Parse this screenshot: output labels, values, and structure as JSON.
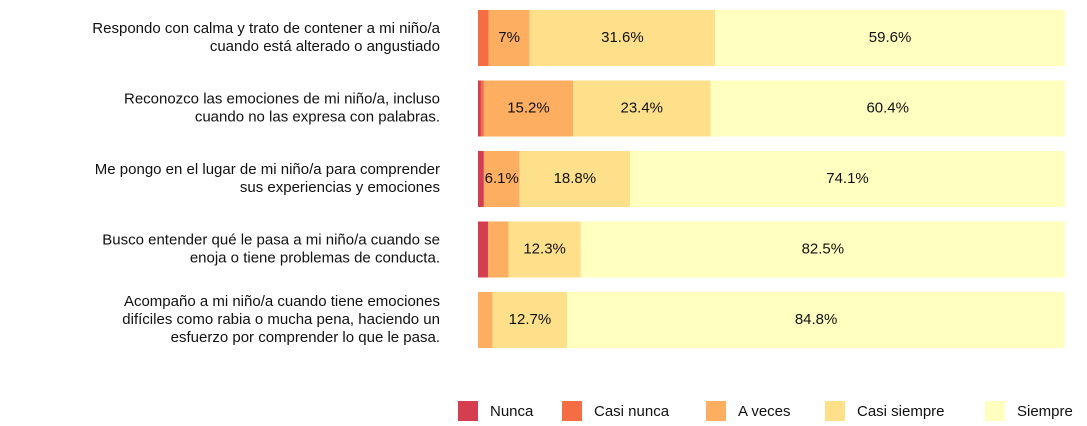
{
  "chart_data": {
    "type": "stacked-barh",
    "categories": [
      [
        "Respondo con calma y trato de contener a mi niño/a",
        "cuando está alterado o angustiado"
      ],
      [
        "Reconozco las emociones de mi niño/a, incluso",
        "cuando no las expresa con palabras."
      ],
      [
        "Me pongo en el lugar de mi niño/a para comprender",
        "sus experiencias y emociones"
      ],
      [
        "Busco entender qué le pasa a mi niño/a cuando se",
        "enoja o tiene problemas de conducta."
      ],
      [
        "Acompaño a mi niño/a cuando tiene emociones",
        "difíciles como rabia o mucha pena, haciendo un",
        "esfuerzo por comprender lo que le pasa."
      ]
    ],
    "series": [
      {
        "name": "Nunca",
        "color": "#d53e4f",
        "values": [
          0,
          0.5,
          1.0,
          1.7,
          0
        ],
        "value_labels": [
          null,
          null,
          null,
          null,
          null
        ]
      },
      {
        "name": "Casi nunca",
        "color": "#f46d43",
        "values": [
          1.8,
          0.5,
          0,
          0,
          0
        ],
        "value_labels": [
          null,
          null,
          null,
          null,
          null
        ]
      },
      {
        "name": "A veces",
        "color": "#fdae61",
        "values": [
          7,
          15.2,
          6.1,
          3.5,
          2.5
        ],
        "value_labels": [
          "7%",
          "15.2%",
          "6.1%",
          null,
          null
        ]
      },
      {
        "name": "Casi siempre",
        "color": "#fee08b",
        "values": [
          31.6,
          23.4,
          18.8,
          12.3,
          12.7
        ],
        "value_labels": [
          "31.6%",
          "23.4%",
          "18.8%",
          "12.3%",
          "12.7%"
        ]
      },
      {
        "name": "Siempre",
        "color": "#ffffbf",
        "values": [
          59.6,
          60.4,
          74.1,
          82.5,
          84.8
        ],
        "value_labels": [
          "59.6%",
          "60.4%",
          "74.1%",
          "82.5%",
          "84.8%"
        ]
      }
    ],
    "xlim": [
      0,
      100
    ]
  }
}
